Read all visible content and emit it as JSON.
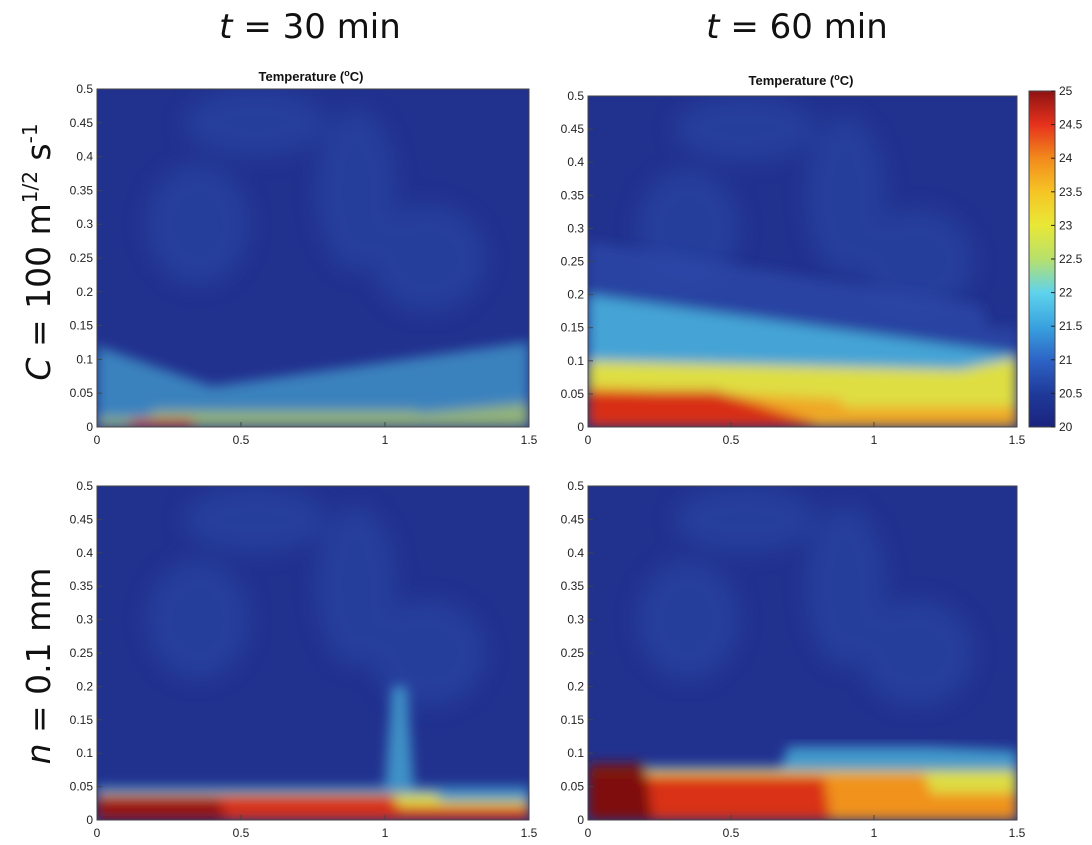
{
  "column_titles": [
    {
      "var": "t",
      "eq": " = 30 min"
    },
    {
      "var": "t",
      "eq": " = 60 min"
    }
  ],
  "row_titles": [
    {
      "var": "C",
      "eq": " = 100 m",
      "sup1": "1/2",
      "mid": " s",
      "sup2": "-1"
    },
    {
      "var": "n",
      "eq": " = 0.1 mm"
    }
  ],
  "panel_title_prefix": "Temperature (",
  "panel_title_sup": "o",
  "panel_title_suffix": "C)",
  "chart_data": [
    {
      "type": "heatmap",
      "panel": "C = 100 m^1/2 s^-1, t = 30 min",
      "title": "Temperature (°C)",
      "xlim": [
        0,
        1.5
      ],
      "ylim": [
        0,
        0.5
      ],
      "x_ticks": [
        "0",
        "0.5",
        "1",
        "1.5"
      ],
      "y_ticks": [
        "0",
        "0.05",
        "0.1",
        "0.15",
        "0.2",
        "0.25",
        "0.3",
        "0.35",
        "0.4",
        "0.45",
        "0.5"
      ],
      "warm_layer_top": [
        [
          0,
          0.12
        ],
        [
          0.4,
          0.06
        ],
        [
          1.0,
          0.08
        ],
        [
          1.3,
          0.1
        ],
        [
          1.5,
          0.13
        ]
      ],
      "colormap": "jet",
      "clim": [
        20,
        25
      ]
    },
    {
      "type": "heatmap",
      "panel": "C = 100 m^1/2 s^-1, t = 60 min",
      "title": "Temperature (°C)",
      "xlim": [
        0,
        1.5
      ],
      "ylim": [
        0,
        0.5
      ],
      "x_ticks": [
        "0",
        "0.5",
        "1",
        "1.5"
      ],
      "y_ticks": [
        "0",
        "0.05",
        "0.1",
        "0.15",
        "0.2",
        "0.25",
        "0.3",
        "0.35",
        "0.4",
        "0.45",
        "0.5"
      ],
      "warm_layer_top": [
        [
          0,
          0.28
        ],
        [
          0.5,
          0.19
        ],
        [
          1.0,
          0.15
        ],
        [
          1.5,
          0.12
        ]
      ],
      "colormap": "jet",
      "clim": [
        20,
        25
      ]
    },
    {
      "type": "heatmap",
      "panel": "n = 0.1 mm, t = 30 min",
      "xlim": [
        0,
        1.5
      ],
      "ylim": [
        0,
        0.5
      ],
      "x_ticks": [
        "0",
        "0.5",
        "1",
        "1.5"
      ],
      "y_ticks": [
        "0",
        "0.05",
        "0.1",
        "0.15",
        "0.2",
        "0.25",
        "0.3",
        "0.35",
        "0.4",
        "0.45",
        "0.5"
      ],
      "warm_layer_top": [
        [
          0,
          0.045
        ],
        [
          0.5,
          0.04
        ],
        [
          1.0,
          0.045
        ],
        [
          1.5,
          0.03
        ]
      ],
      "colormap": "jet",
      "clim": [
        20,
        25
      ]
    },
    {
      "type": "heatmap",
      "panel": "n = 0.1 mm, t = 60 min",
      "xlim": [
        0,
        1.5
      ],
      "ylim": [
        0,
        0.5
      ],
      "x_ticks": [
        "0",
        "0.5",
        "1",
        "1.5"
      ],
      "y_ticks": [
        "0",
        "0.05",
        "0.1",
        "0.15",
        "0.2",
        "0.25",
        "0.3",
        "0.35",
        "0.4",
        "0.45",
        "0.5"
      ],
      "warm_layer_top": [
        [
          0,
          0.09
        ],
        [
          0.5,
          0.08
        ],
        [
          1.0,
          0.11
        ],
        [
          1.5,
          0.08
        ]
      ],
      "colormap": "jet",
      "clim": [
        20,
        25
      ]
    }
  ],
  "colorbar": {
    "min": 20,
    "max": 25,
    "ticks": [
      "20",
      "20.5",
      "21",
      "21.5",
      "22",
      "22.5",
      "23",
      "23.5",
      "24",
      "24.5",
      "25"
    ],
    "colors": [
      "#1a237e",
      "#1f3a9a",
      "#2d64c6",
      "#39a3df",
      "#5fd3ec",
      "#b7e06c",
      "#e9e836",
      "#f6c525",
      "#f28a1c",
      "#e6321c",
      "#8e1313"
    ]
  },
  "colors": {
    "background_deep": "#21318e",
    "background_mid": "#2b48a8",
    "warm_red": "#d62818",
    "warm_yellow": "#ece336",
    "warm_cyan": "#4fc4e6"
  }
}
